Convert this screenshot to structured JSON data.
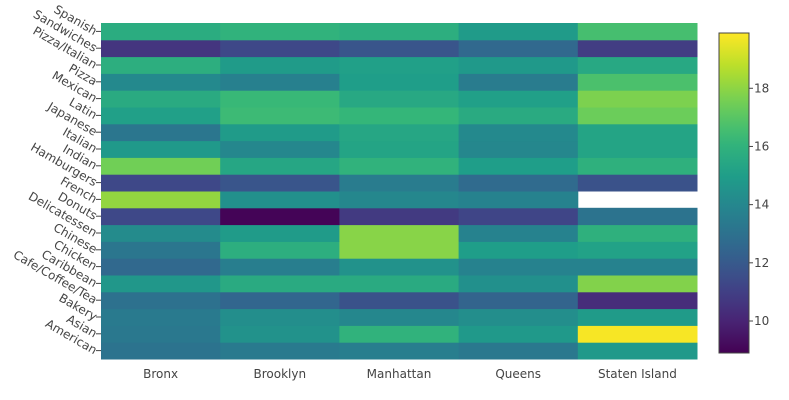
{
  "chart_data": {
    "type": "heatmap",
    "x": [
      "Bronx",
      "Brooklyn",
      "Manhattan",
      "Queens",
      "Staten Island"
    ],
    "y": [
      "American",
      "Asian",
      "Bakery",
      "Cafe/Coffee/Tea",
      "Caribbean",
      "Chicken",
      "Chinese",
      "Delicatessen",
      "Donuts",
      "French",
      "Hamburgers",
      "Indian",
      "Italian",
      "Japanese",
      "Latin",
      "Mexican",
      "Pizza",
      "Pizza/Italian",
      "Sandwiches",
      "Spanish"
    ],
    "z": [
      [
        13.1,
        13.4,
        13.6,
        13.3,
        14.8
      ],
      [
        13.3,
        14.5,
        16.0,
        14.8,
        19.8
      ],
      [
        13.4,
        14.3,
        14.0,
        14.3,
        14.9
      ],
      [
        13.0,
        12.5,
        11.7,
        12.4,
        10.3
      ],
      [
        14.7,
        15.6,
        15.6,
        14.4,
        17.8
      ],
      [
        12.6,
        13.6,
        14.5,
        13.8,
        13.8
      ],
      [
        13.2,
        15.8,
        17.9,
        15.0,
        15.2
      ],
      [
        14.2,
        14.9,
        17.9,
        13.8,
        15.9
      ],
      [
        11.3,
        9.0,
        10.8,
        11.2,
        13.1
      ],
      [
        18.1,
        14.4,
        14.0,
        13.8,
        null
      ],
      [
        11.3,
        11.8,
        13.5,
        12.7,
        11.7
      ],
      [
        17.5,
        15.4,
        16.0,
        15.0,
        15.9
      ],
      [
        14.8,
        14.0,
        15.3,
        14.0,
        15.3
      ],
      [
        13.2,
        14.9,
        15.4,
        14.1,
        15.3
      ],
      [
        15.1,
        16.4,
        16.2,
        15.6,
        17.4
      ],
      [
        15.6,
        16.3,
        15.5,
        15.1,
        17.7
      ],
      [
        14.1,
        13.7,
        15.0,
        13.5,
        16.7
      ],
      [
        15.8,
        14.9,
        15.1,
        14.8,
        15.5
      ],
      [
        10.6,
        11.3,
        11.8,
        12.6,
        10.9
      ],
      [
        15.7,
        16.0,
        15.8,
        14.9,
        16.6
      ]
    ],
    "zlim": [
      8.9,
      19.9
    ],
    "colorscale": "Viridis",
    "colorbar": {
      "ticks": [
        10,
        12,
        14,
        16,
        18
      ],
      "tick_labels": [
        "10",
        "12",
        "14",
        "16",
        "18"
      ]
    },
    "title": "",
    "xlabel": "",
    "ylabel": ""
  }
}
